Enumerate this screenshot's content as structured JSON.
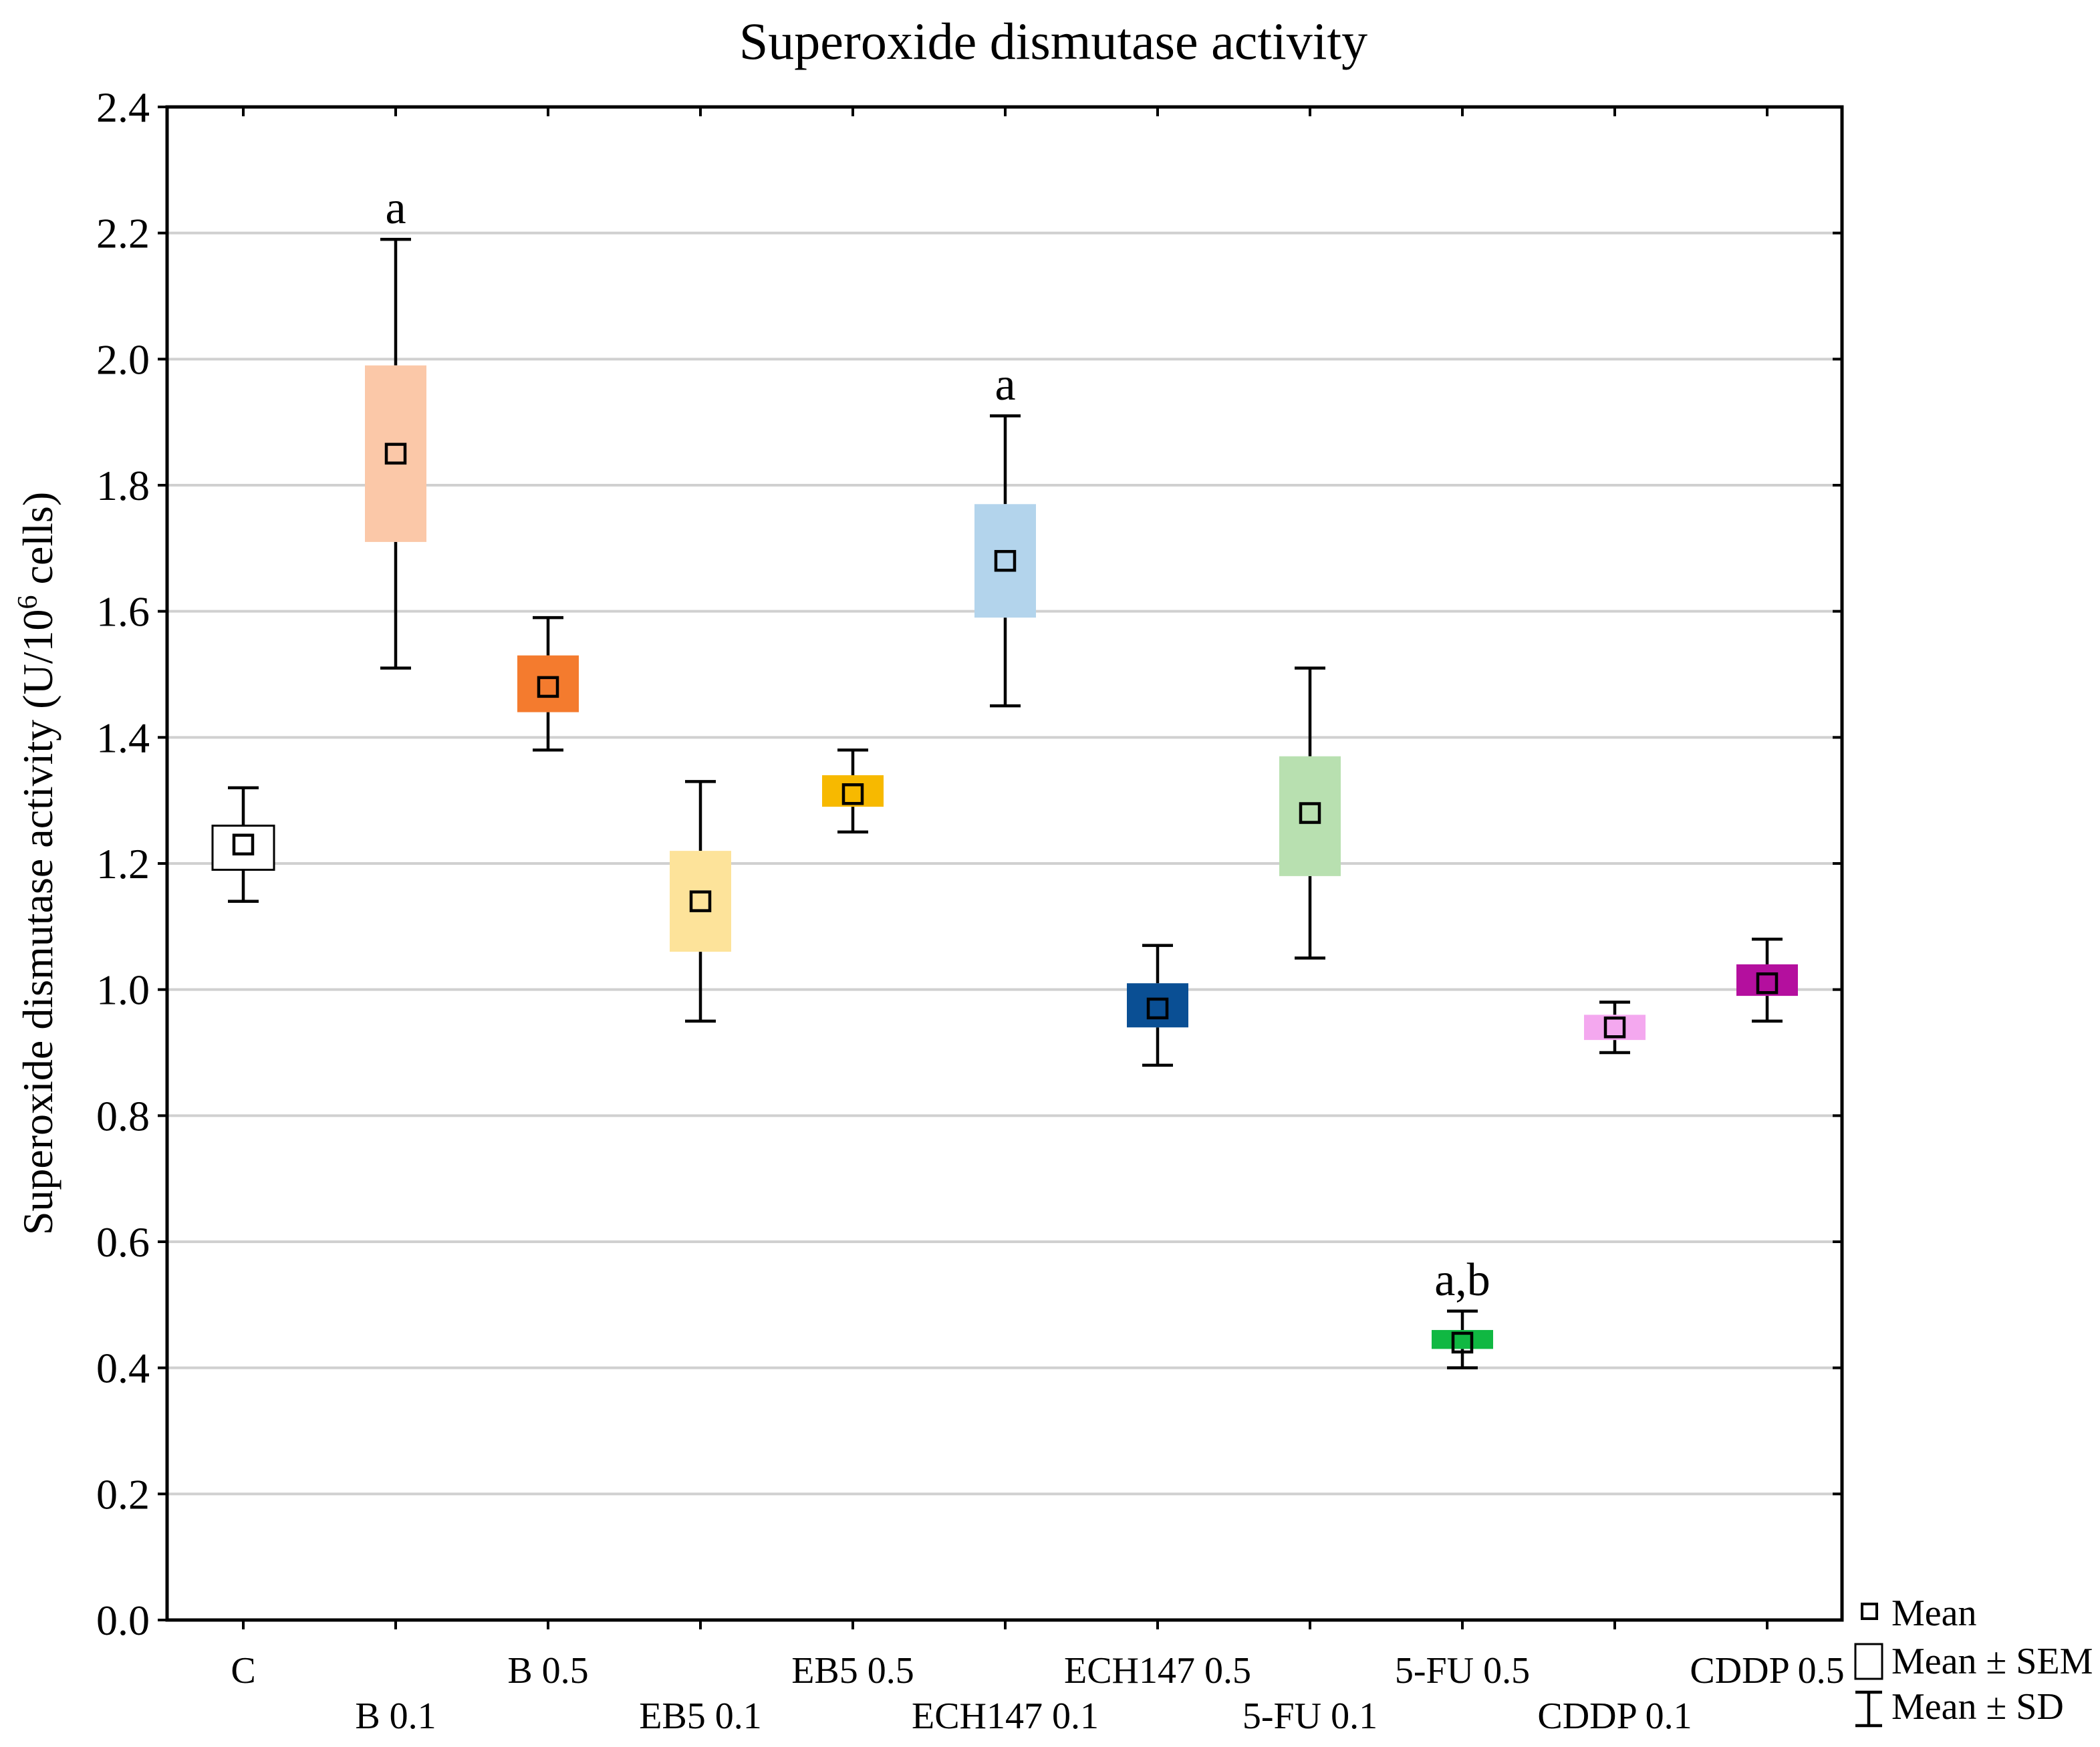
{
  "chart_data": {
    "type": "box",
    "title": "Superoxide dismutase activity",
    "ylabel_main": "Superoxide dismutase activity (U/10",
    "ylabel_sup": "6",
    "ylabel_end": " cells)",
    "xlabel": "",
    "ylim": [
      0.0,
      2.4
    ],
    "yticks": [
      "0.0",
      "0.2",
      "0.4",
      "0.6",
      "0.8",
      "1.0",
      "1.2",
      "1.4",
      "1.6",
      "1.8",
      "2.0",
      "2.2",
      "2.4"
    ],
    "grid": true,
    "legend_position": "bottom-right",
    "legend": {
      "mean": "Mean",
      "sem": "Mean ± SEM",
      "sd": "Mean ± SD"
    },
    "groups": [
      {
        "name": "C",
        "mean": 1.23,
        "sem_low": 1.19,
        "sem_high": 1.26,
        "sd_low": 1.14,
        "sd_high": 1.32,
        "color": "#ffffff",
        "annotation": ""
      },
      {
        "name": "B 0.1",
        "mean": 1.85,
        "sem_low": 1.71,
        "sem_high": 1.99,
        "sd_low": 1.51,
        "sd_high": 2.19,
        "color": "#fbc8a8",
        "annotation": "a"
      },
      {
        "name": "B 0.5",
        "mean": 1.48,
        "sem_low": 1.44,
        "sem_high": 1.53,
        "sd_low": 1.38,
        "sd_high": 1.59,
        "color": "#f47b2e",
        "annotation": ""
      },
      {
        "name": "EB5 0.1",
        "mean": 1.14,
        "sem_low": 1.06,
        "sem_high": 1.22,
        "sd_low": 0.95,
        "sd_high": 1.33,
        "color": "#fde39a",
        "annotation": ""
      },
      {
        "name": "EB5 0.5",
        "mean": 1.31,
        "sem_low": 1.29,
        "sem_high": 1.34,
        "sd_low": 1.25,
        "sd_high": 1.38,
        "color": "#f7b900",
        "annotation": ""
      },
      {
        "name": "ECH147 0.1",
        "mean": 1.68,
        "sem_low": 1.59,
        "sem_high": 1.77,
        "sd_low": 1.45,
        "sd_high": 1.91,
        "color": "#b3d4ec",
        "annotation": "a"
      },
      {
        "name": "ECH147 0.5",
        "mean": 0.97,
        "sem_low": 0.94,
        "sem_high": 1.01,
        "sd_low": 0.88,
        "sd_high": 1.07,
        "color": "#0a4f94",
        "annotation": ""
      },
      {
        "name": "5-FU 0.1",
        "mean": 1.28,
        "sem_low": 1.18,
        "sem_high": 1.37,
        "sd_low": 1.05,
        "sd_high": 1.51,
        "color": "#b8e0b0",
        "annotation": ""
      },
      {
        "name": "5-FU 0.5",
        "mean": 0.44,
        "sem_low": 0.43,
        "sem_high": 0.46,
        "sd_low": 0.4,
        "sd_high": 0.49,
        "color": "#10b842",
        "annotation": "a,b"
      },
      {
        "name": "CDDP 0.1",
        "mean": 0.94,
        "sem_low": 0.92,
        "sem_high": 0.96,
        "sd_low": 0.9,
        "sd_high": 0.98,
        "color": "#f4a8ef",
        "annotation": ""
      },
      {
        "name": "CDDP 0.5",
        "mean": 1.01,
        "sem_low": 0.99,
        "sem_high": 1.04,
        "sd_low": 0.95,
        "sd_high": 1.08,
        "color": "#b40f9e",
        "annotation": ""
      }
    ]
  }
}
